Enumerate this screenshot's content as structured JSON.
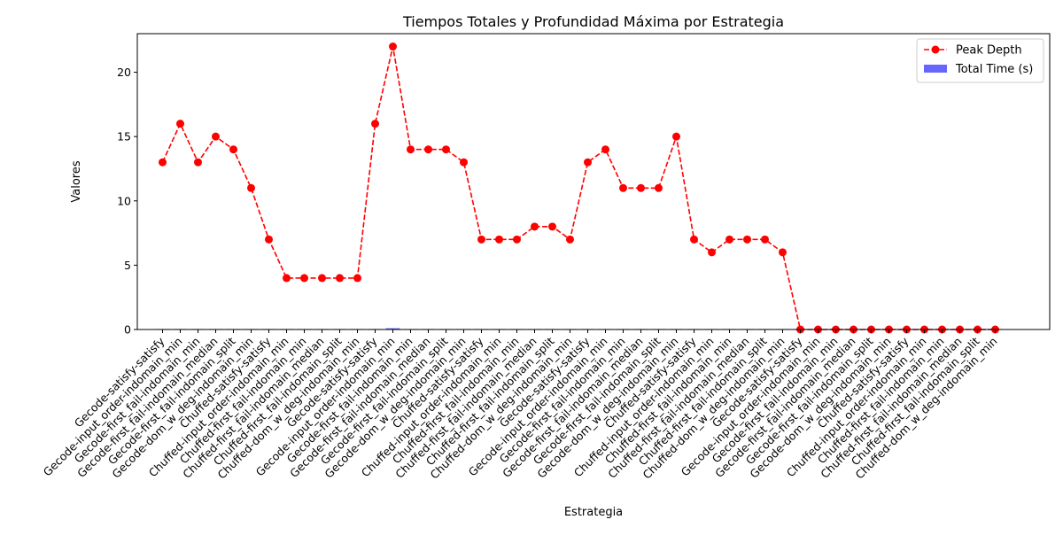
{
  "chart_data": {
    "type": "bar",
    "title": "Tiempos Totales y Profundidad Máxima por Estrategia",
    "xlabel": "Estrategia",
    "ylabel": "Valores",
    "ylim": [
      0,
      23
    ],
    "yticks": [
      0,
      5,
      10,
      15,
      20
    ],
    "grid": false,
    "legend_position": "top-right",
    "categories": [
      "Gecode-satisfy-satisfy",
      "Gecode-input_order-indomain_min",
      "Gecode-first_fail-indomain_min",
      "Gecode-first_fail-indomain_median",
      "Gecode-first_fail-indomain_split",
      "Gecode-dom_w_deg-indomain_min",
      "Chuffed-satisfy-satisfy",
      "Chuffed-input_order-indomain_min",
      "Chuffed-first_fail-indomain_min",
      "Chuffed-first_fail-indomain_median",
      "Chuffed-first_fail-indomain_split",
      "Chuffed-dom_w_deg-indomain_min",
      "Gecode-satisfy-satisfy",
      "Gecode-input_order-indomain_min",
      "Gecode-first_fail-indomain_min",
      "Gecode-first_fail-indomain_median",
      "Gecode-first_fail-indomain_split",
      "Gecode-dom_w_deg-indomain_min",
      "Chuffed-satisfy-satisfy",
      "Chuffed-input_order-indomain_min",
      "Chuffed-first_fail-indomain_min",
      "Chuffed-first_fail-indomain_median",
      "Chuffed-first_fail-indomain_split",
      "Chuffed-dom_w_deg-indomain_min",
      "Gecode-satisfy-satisfy",
      "Gecode-input_order-indomain_min",
      "Gecode-first_fail-indomain_min",
      "Gecode-first_fail-indomain_median",
      "Gecode-first_fail-indomain_split",
      "Gecode-dom_w_deg-indomain_min",
      "Chuffed-satisfy-satisfy",
      "Chuffed-input_order-indomain_min",
      "Chuffed-first_fail-indomain_min",
      "Chuffed-first_fail-indomain_median",
      "Chuffed-first_fail-indomain_split",
      "Chuffed-dom_w_deg-indomain_min",
      "Gecode-satisfy-satisfy",
      "Gecode-input_order-indomain_min",
      "Gecode-first_fail-indomain_min",
      "Gecode-first_fail-indomain_median",
      "Gecode-first_fail-indomain_split",
      "Gecode-dom_w_deg-indomain_min",
      "Chuffed-satisfy-satisfy",
      "Chuffed-input_order-indomain_min",
      "Chuffed-first_fail-indomain_min",
      "Chuffed-first_fail-indomain_median",
      "Chuffed-first_fail-indomain_split",
      "Chuffed-dom_w_deg-indomain_min"
    ],
    "series": [
      {
        "name": "Peak Depth",
        "type": "line",
        "color": "#ff0000",
        "line_style": "dashed",
        "marker": "circle",
        "values": [
          13,
          16,
          13,
          15,
          14,
          11,
          7,
          4,
          4,
          4,
          4,
          4,
          16,
          22,
          14,
          14,
          14,
          13,
          7,
          7,
          7,
          8,
          8,
          7,
          13,
          14,
          11,
          11,
          11,
          15,
          7,
          6,
          7,
          7,
          7,
          6,
          0,
          0,
          0,
          0,
          0,
          0,
          0,
          0,
          0,
          0,
          0,
          0
        ]
      },
      {
        "name": "Total Time (s)",
        "type": "bar",
        "color": "#0000ff",
        "opacity": 0.6,
        "values": [
          0.02,
          0.01,
          0.01,
          0.01,
          0.01,
          0.01,
          0.01,
          0.01,
          0.01,
          0.01,
          0.01,
          0.01,
          0.03,
          0.1,
          0.02,
          0.02,
          0.02,
          0.02,
          0.01,
          0.01,
          0.01,
          0.01,
          0.01,
          0.01,
          0.02,
          0.02,
          0.01,
          0.01,
          0.01,
          0.02,
          0.01,
          0.01,
          0.01,
          0.01,
          0.01,
          0.01,
          0.0,
          0.0,
          0.0,
          0.0,
          0.0,
          0.0,
          0.0,
          0.0,
          0.0,
          0.0,
          0.0,
          0.0
        ]
      }
    ]
  }
}
